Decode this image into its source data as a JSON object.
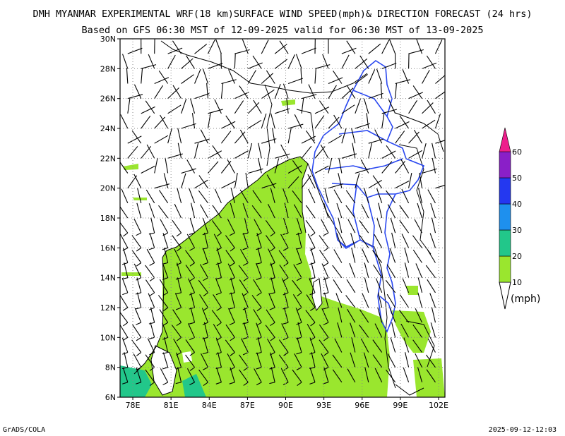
{
  "header": {
    "title": "DMH MYANMAR EXPERIMENTAL WRF(18 km)SURFACE WIND SPEED(mph)& DIRECTION FORECAST (24 hrs)",
    "subtitle": "Based on GFS 06:30 MST of 12-09-2025 valid for 06:30 MST of 13-09-2025"
  },
  "map": {
    "lon_range": [
      77,
      102.5
    ],
    "lat_range": [
      6,
      30
    ],
    "x_ticks": [
      {
        "value": 78,
        "label": "78E"
      },
      {
        "value": 81,
        "label": "81E"
      },
      {
        "value": 84,
        "label": "84E"
      },
      {
        "value": 87,
        "label": "87E"
      },
      {
        "value": 90,
        "label": "90E"
      },
      {
        "value": 93,
        "label": "93E"
      },
      {
        "value": 96,
        "label": "96E"
      },
      {
        "value": 99,
        "label": "99E"
      },
      {
        "value": 102,
        "label": "102E"
      }
    ],
    "y_ticks": [
      {
        "value": 6,
        "label": "6N"
      },
      {
        "value": 8,
        "label": "8N"
      },
      {
        "value": 10,
        "label": "10N"
      },
      {
        "value": 12,
        "label": "12N"
      },
      {
        "value": 14,
        "label": "14N"
      },
      {
        "value": 16,
        "label": "16N"
      },
      {
        "value": 18,
        "label": "18N"
      },
      {
        "value": 20,
        "label": "20N"
      },
      {
        "value": 22,
        "label": "22N"
      },
      {
        "value": 24,
        "label": "24N"
      },
      {
        "value": 26,
        "label": "26N"
      },
      {
        "value": 28,
        "label": "28N"
      },
      {
        "value": 30,
        "label": "30N"
      }
    ],
    "grid": "dotted",
    "colors": {
      "speed_10_20": "#9ae62e",
      "speed_20_30": "#22c78a",
      "myanmar_border": "#2a48f0",
      "coastline": "#000000"
    }
  },
  "colorbar": {
    "levels": [
      "10",
      "20",
      "30",
      "40",
      "50",
      "60"
    ],
    "colors": [
      "#9ae62e",
      "#22c78a",
      "#1e90ee",
      "#2438f0",
      "#8a1fc8",
      "#ee1e8c"
    ],
    "unit": "(mph)"
  },
  "footer": {
    "left": "GrADS/COLA",
    "right": "2025-09-12-12:03"
  }
}
